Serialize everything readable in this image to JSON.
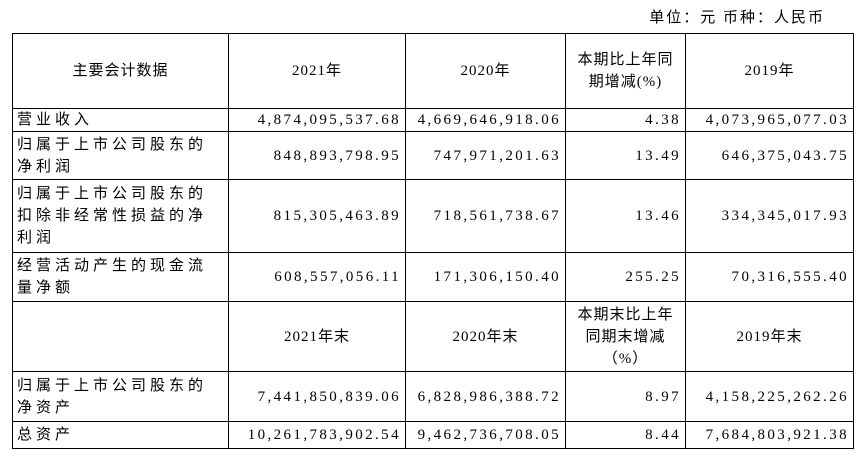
{
  "unit": "单位：元 币种：人民币",
  "table": {
    "header": [
      "主要会计数据",
      "2021年",
      "2020年",
      "本期比上年同期增减(%)",
      "2019年"
    ],
    "rows": [
      [
        "营业收入",
        "4,874,095,537.68",
        "4,669,646,918.06",
        "4.38",
        "4,073,965,077.03"
      ],
      [
        "归属于上市公司股东的净利润",
        "848,893,798.95",
        "747,971,201.63",
        "13.49",
        "646,375,043.75"
      ],
      [
        "归属于上市公司股东的扣除非经常性损益的净利润",
        "815,305,463.89",
        "718,561,738.67",
        "13.46",
        "334,345,017.93"
      ],
      [
        "经营活动产生的现金流量净额",
        "608,557,056.11",
        "171,306,150.40",
        "255.25",
        "70,316,555.40"
      ]
    ],
    "header_end": [
      "2021年末",
      "2020年末",
      "本期末比上年同期末增减（%）",
      "2019年末"
    ],
    "rows_end": [
      [
        "归属于上市公司股东的净资产",
        "7,441,850,839.06",
        "6,828,986,388.72",
        "8.97",
        "4,158,225,262.26"
      ],
      [
        "总资产",
        "10,261,783,902.54",
        "9,462,736,708.05",
        "8.44",
        "7,684,803,921.38"
      ]
    ]
  }
}
